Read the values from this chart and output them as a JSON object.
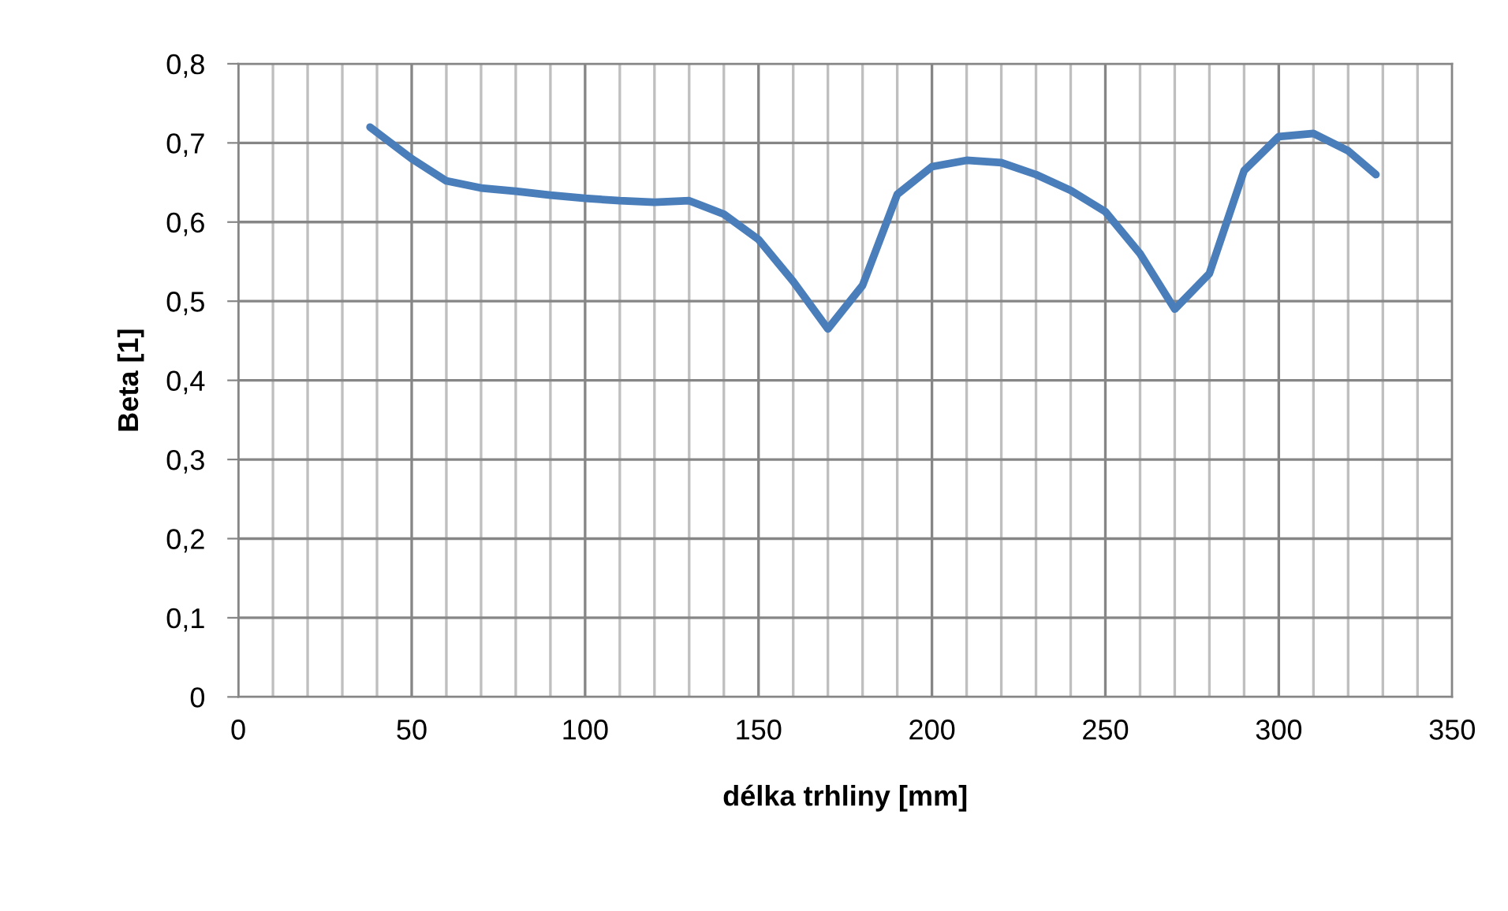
{
  "chart_data": {
    "type": "line",
    "xlabel": "délka trhliny [mm]",
    "ylabel": "Beta [1]",
    "x": [
      38,
      50,
      60,
      70,
      80,
      90,
      100,
      110,
      120,
      130,
      140,
      150,
      160,
      170,
      180,
      190,
      200,
      210,
      220,
      230,
      240,
      250,
      260,
      270,
      280,
      290,
      300,
      310,
      320,
      328
    ],
    "series": [
      {
        "color": "#4a7ebb",
        "values": [
          0.72,
          0.68,
          0.652,
          0.643,
          0.639,
          0.634,
          0.63,
          0.627,
          0.625,
          0.627,
          0.61,
          0.578,
          0.525,
          0.465,
          0.52,
          0.635,
          0.67,
          0.678,
          0.675,
          0.66,
          0.64,
          0.613,
          0.56,
          0.49,
          0.535,
          0.665,
          0.708,
          0.712,
          0.69,
          0.66
        ]
      }
    ],
    "xlim": [
      0,
      350
    ],
    "ylim": [
      0,
      0.8
    ],
    "xticks": [
      0,
      {
        "value": 10,
        "label": null
      },
      {
        "value": 20,
        "label": null
      },
      {
        "value": 30,
        "label": null
      },
      {
        "value": 40,
        "label": null
      },
      50,
      {
        "value": 60,
        "label": null
      },
      {
        "value": 70,
        "label": null
      },
      {
        "value": 80,
        "label": null
      },
      {
        "value": 90,
        "label": null
      },
      100,
      {
        "value": 110,
        "label": null
      },
      {
        "value": 120,
        "label": null
      },
      {
        "value": 130,
        "label": null
      },
      {
        "value": 140,
        "label": null
      },
      150,
      {
        "value": 160,
        "label": null
      },
      {
        "value": 170,
        "label": null
      },
      {
        "value": 180,
        "label": null
      },
      {
        "value": 190,
        "label": null
      },
      200,
      {
        "value": 210,
        "label": null
      },
      {
        "value": 220,
        "label": null
      },
      {
        "value": 230,
        "label": null
      },
      {
        "value": 240,
        "label": null
      },
      250,
      {
        "value": 260,
        "label": null
      },
      {
        "value": 270,
        "label": null
      },
      {
        "value": 280,
        "label": null
      },
      {
        "value": 290,
        "label": null
      },
      300,
      {
        "value": 310,
        "label": null
      },
      {
        "value": 320,
        "label": null
      },
      {
        "value": 330,
        "label": null
      },
      {
        "value": 340,
        "label": null
      },
      350
    ],
    "yticks": [
      {
        "value": 0,
        "label": "0"
      },
      {
        "value": 0.1,
        "label": "0,1"
      },
      {
        "value": 0.2,
        "label": "0,2"
      },
      {
        "value": 0.3,
        "label": "0,3"
      },
      {
        "value": 0.4,
        "label": "0,4"
      },
      {
        "value": 0.5,
        "label": "0,5"
      },
      {
        "value": 0.6,
        "label": "0,6"
      },
      {
        "value": 0.7,
        "label": "0,7"
      },
      {
        "value": 0.8,
        "label": "0,8"
      }
    ],
    "grid": true,
    "line_style": "solid",
    "marker": "none"
  }
}
